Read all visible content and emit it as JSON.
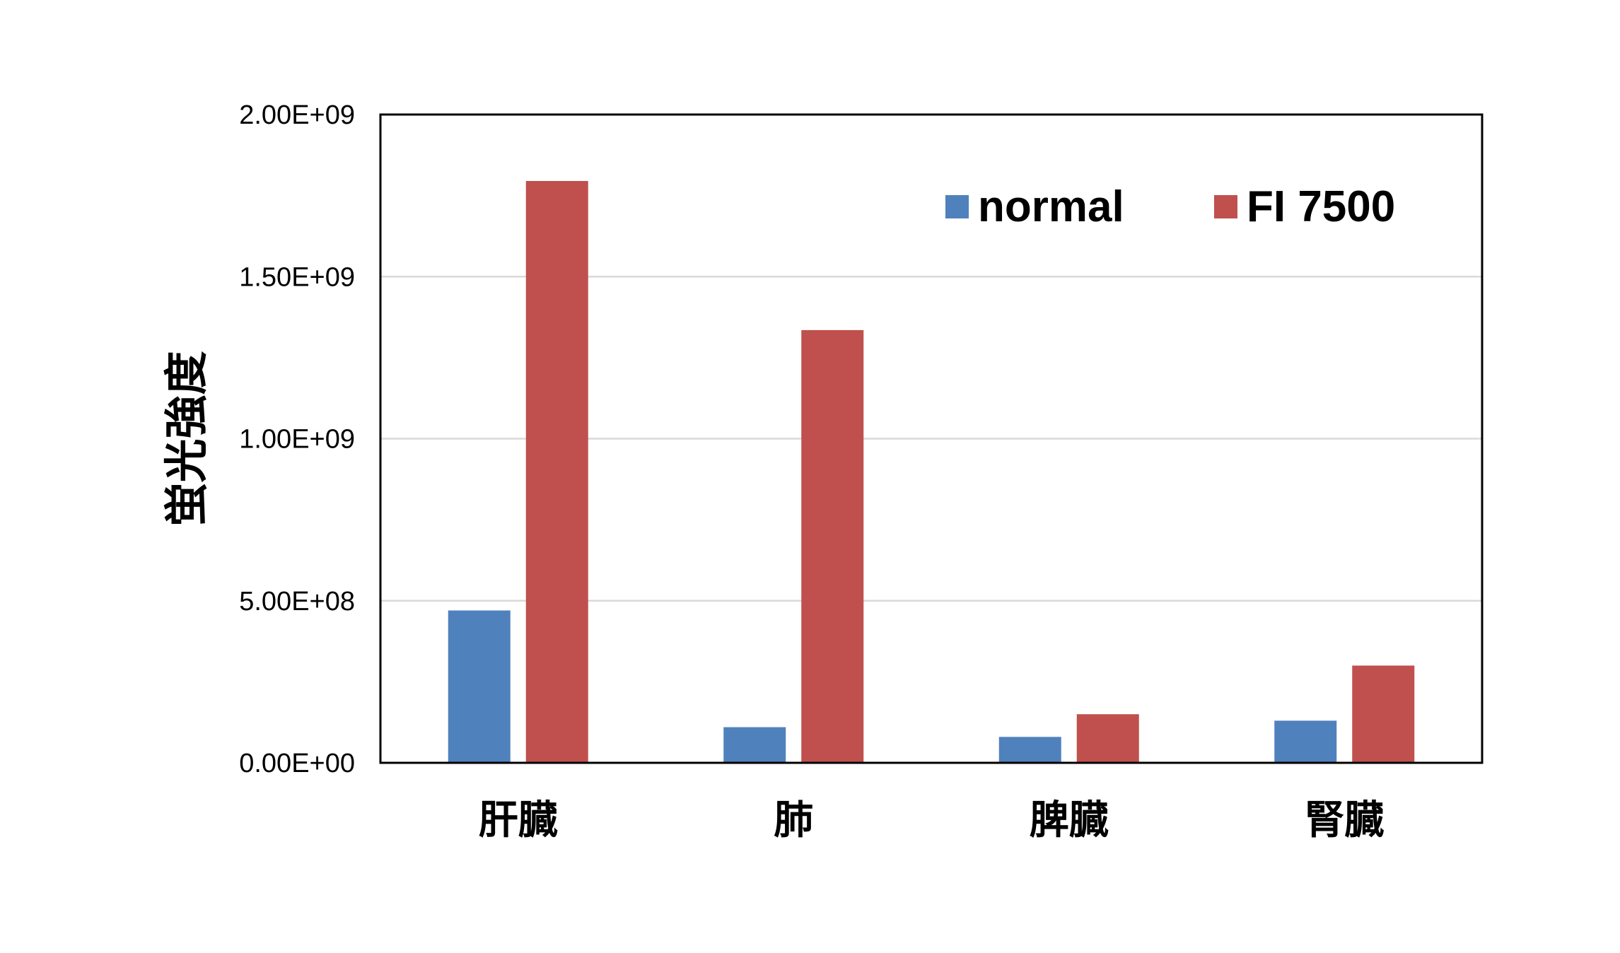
{
  "chart_data": {
    "type": "bar",
    "title": "",
    "xlabel": "",
    "ylabel": "蛍光強度",
    "categories": [
      "肝臓",
      "肺",
      "脾臓",
      "腎臓"
    ],
    "series": [
      {
        "name": "normal",
        "color": "#4F81BD",
        "values": [
          470000000,
          110000000,
          80000000,
          130000000
        ]
      },
      {
        "name": "FI 7500",
        "color": "#C0504D",
        "values": [
          1795000000,
          1335000000,
          150000000,
          300000000
        ]
      }
    ],
    "ylim": [
      0,
      2000000000
    ],
    "yticks": [
      0,
      500000000,
      1000000000,
      1500000000,
      2000000000
    ],
    "ytick_labels": [
      "0.00E+00",
      "5.00E+08",
      "1.00E+09",
      "1.50E+09",
      "2.00E+09"
    ],
    "grid": true,
    "legend_position": "top-right"
  }
}
